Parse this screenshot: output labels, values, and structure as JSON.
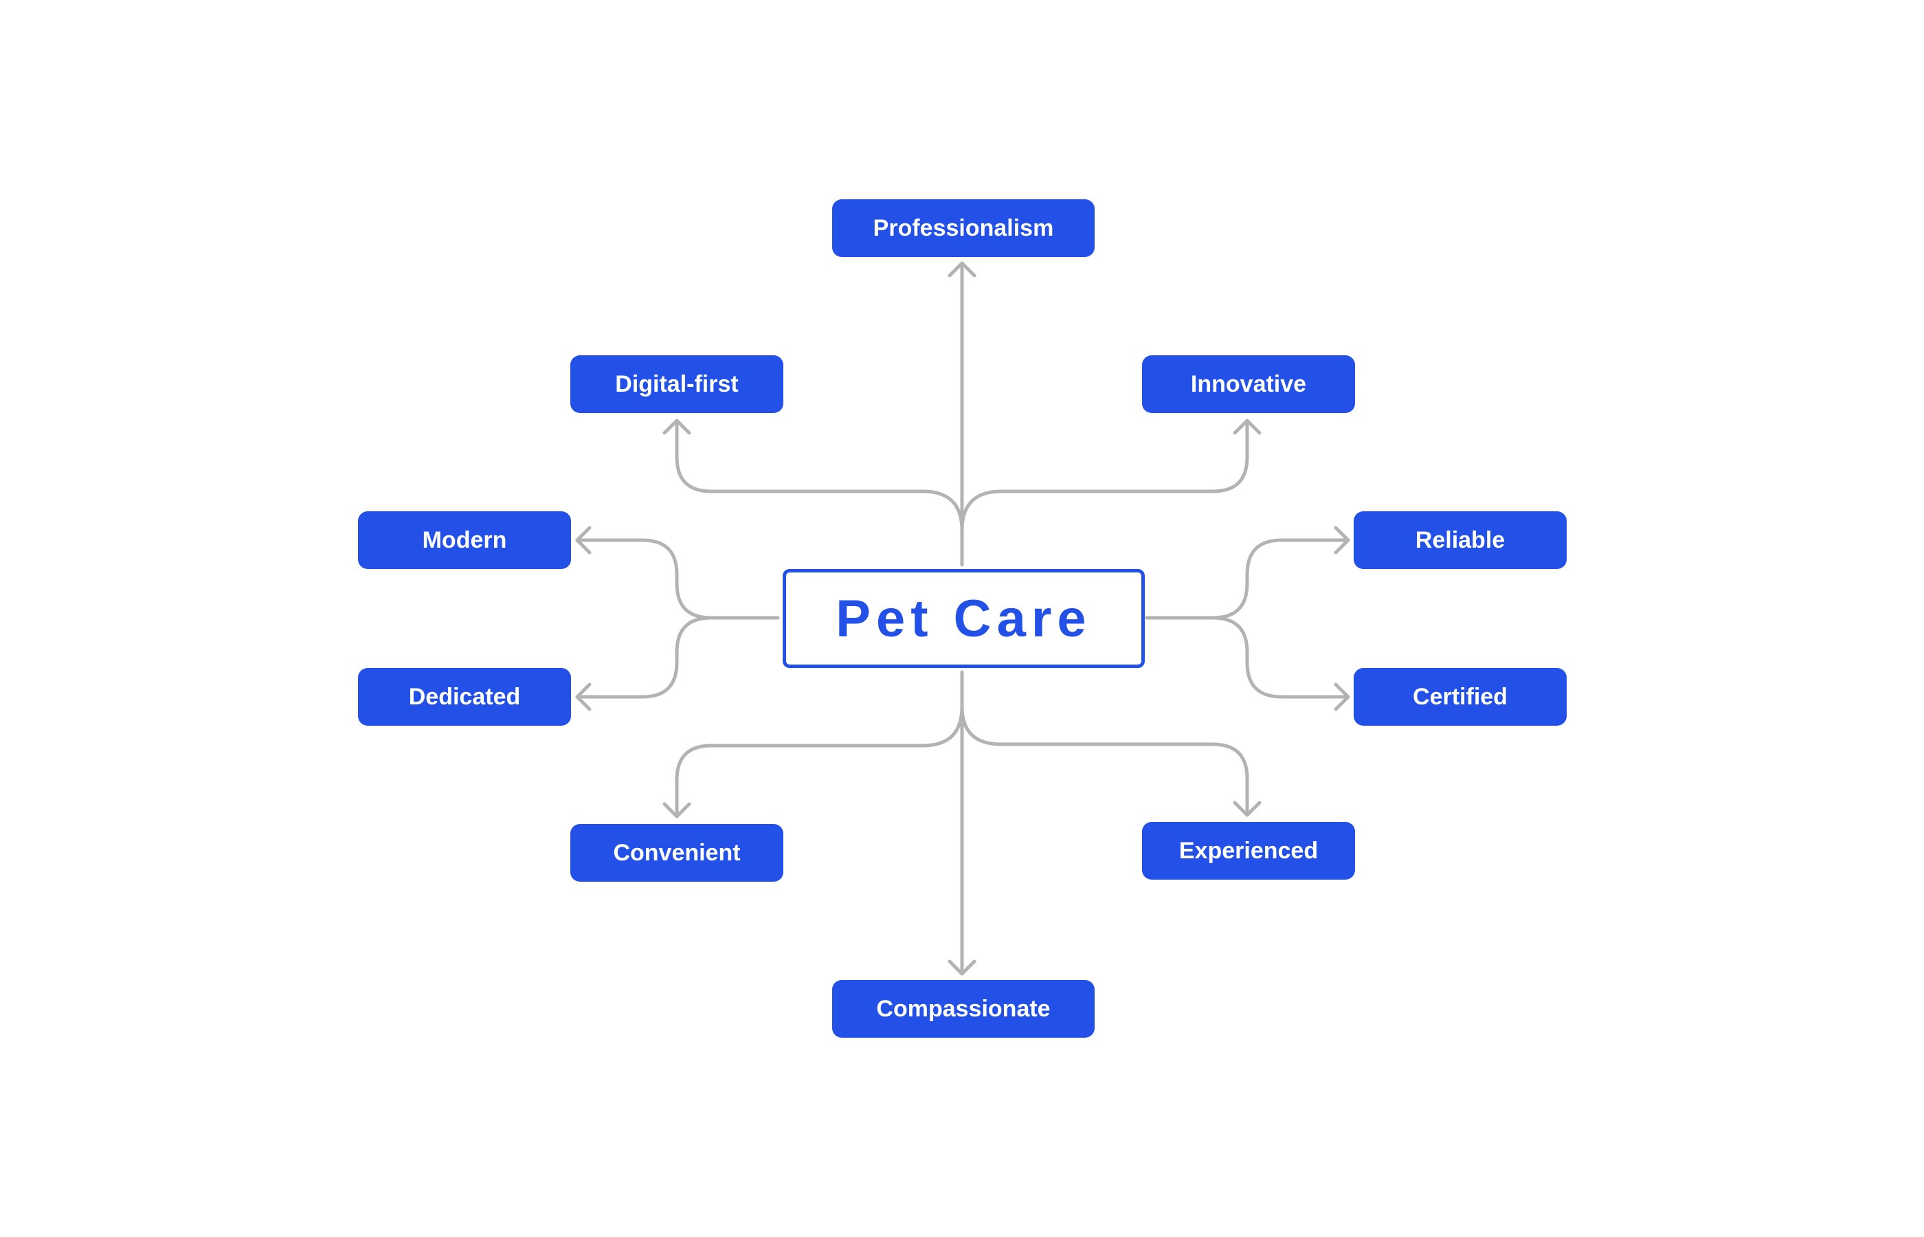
{
  "center": {
    "label": "Pet Care"
  },
  "nodes": {
    "professionalism": "Professionalism",
    "digital_first": "Digital-first",
    "innovative": "Innovative",
    "modern": "Modern",
    "reliable": "Reliable",
    "dedicated": "Dedicated",
    "certified": "Certified",
    "convenient": "Convenient",
    "experienced": "Experienced",
    "compassionate": "Compassionate"
  },
  "colors": {
    "accent": "#2350e6",
    "connector": "#b3b3b3",
    "background": "#ffffff"
  }
}
